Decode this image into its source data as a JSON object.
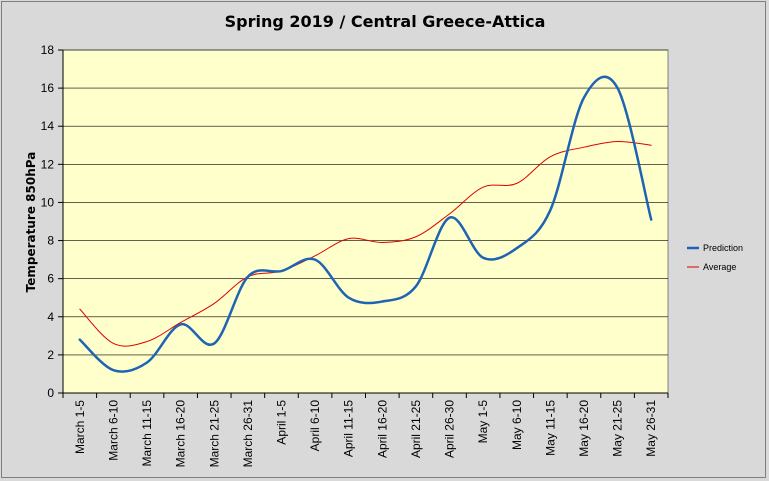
{
  "chart_data": {
    "type": "line",
    "title": "Spring 2019 / Central Greece-Attica",
    "xlabel": "",
    "ylabel": "Temperature 850hPa",
    "ylim": [
      0,
      18
    ],
    "yticks": [
      0,
      2,
      4,
      6,
      8,
      10,
      12,
      14,
      16,
      18
    ],
    "grid": "horizontal",
    "legend_position": "right",
    "categories": [
      "March 1-5",
      "March 6-10",
      "March 11-15",
      "March 16-20",
      "March 21-25",
      "March 26-31",
      "April 1-5",
      "April 6-10",
      "April 11-15",
      "April 16-20",
      "April 21-25",
      "April 26-30",
      "May 1-5",
      "May 6-10",
      "May 11-15",
      "May 16-20",
      "May 21-25",
      "May 26-31"
    ],
    "series": [
      {
        "name": "Prediction",
        "color": "#1f64b4",
        "width": 2.5,
        "values": [
          2.8,
          1.2,
          1.6,
          3.6,
          2.6,
          6.1,
          6.4,
          7.0,
          5.0,
          4.8,
          5.6,
          9.2,
          7.1,
          7.6,
          9.6,
          15.5,
          16.0,
          9.1
        ]
      },
      {
        "name": "Average",
        "color": "#e00000",
        "width": 1,
        "values": [
          4.4,
          2.6,
          2.7,
          3.7,
          4.7,
          6.1,
          6.4,
          7.2,
          8.1,
          7.9,
          8.2,
          9.4,
          10.8,
          11.0,
          12.4,
          12.9,
          13.2,
          13.0
        ]
      }
    ],
    "plot_background": "#ffffcc",
    "page_background": "#d9d9d9"
  }
}
